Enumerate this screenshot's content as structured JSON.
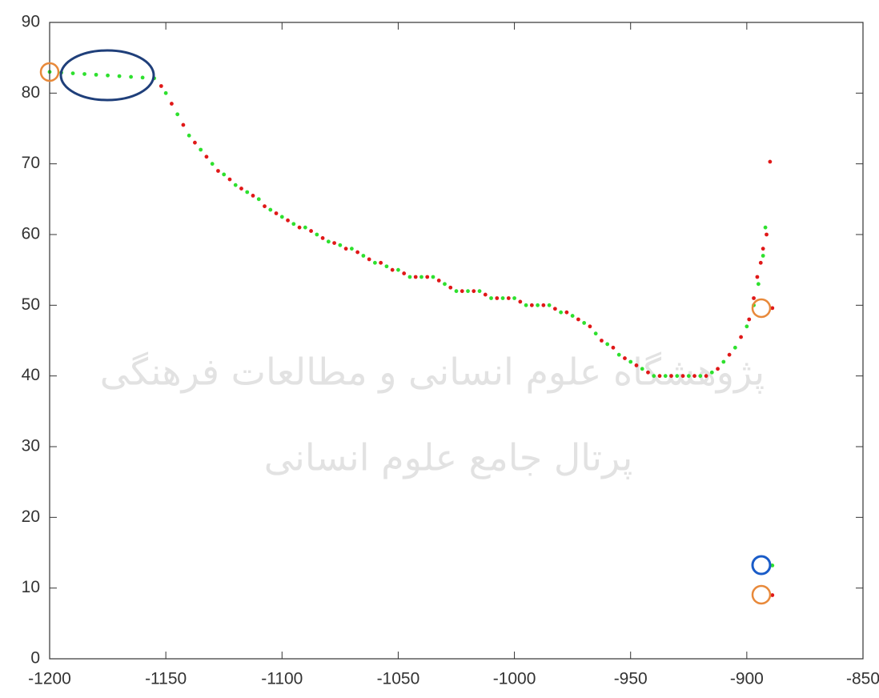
{
  "chart_data": {
    "type": "scatter",
    "annotations": [
      "پژوهشگاه علوم انسانی و مطالعات فرهنگی",
      "پرتال جامع علوم انسانی"
    ],
    "xlim": [
      -1200,
      -850
    ],
    "ylim": [
      0,
      90
    ],
    "xticks": [
      -1200,
      -1150,
      -1100,
      -1050,
      -1000,
      -950,
      -900,
      -850
    ],
    "yticks": [
      0,
      10,
      20,
      30,
      40,
      50,
      60,
      70,
      80,
      90
    ],
    "series": [
      {
        "color": "#2ee02e",
        "x": [
          -1200,
          -1195,
          -1190,
          -1185,
          -1180,
          -1175,
          -1170,
          -1165,
          -1160,
          -1155,
          -1150,
          -1145,
          -1140,
          -1135,
          -1130,
          -1125,
          -1120,
          -1115,
          -1110,
          -1105,
          -1100,
          -1095,
          -1090,
          -1085,
          -1080,
          -1075,
          -1070,
          -1065,
          -1060,
          -1055,
          -1050,
          -1045,
          -1040,
          -1035,
          -1030,
          -1025,
          -1020,
          -1015,
          -1010,
          -1005,
          -1000,
          -995,
          -990,
          -985,
          -980,
          -975,
          -970,
          -965,
          -960,
          -955,
          -950,
          -945,
          -940,
          -935,
          -930,
          -925,
          -920,
          -915,
          -910,
          -905,
          -900,
          -897,
          -895,
          -893,
          -892,
          -889
        ],
        "y": [
          83,
          82.9,
          82.8,
          82.7,
          82.6,
          82.5,
          82.4,
          82.3,
          82.2,
          82.1,
          80,
          77,
          74,
          72,
          70,
          68.5,
          67,
          66,
          65,
          63.5,
          62.5,
          61.5,
          61,
          60,
          59,
          58.5,
          58,
          57,
          56,
          55.5,
          55,
          54,
          54,
          54,
          53,
          52,
          52,
          52,
          51,
          51,
          51,
          50,
          50,
          50,
          49,
          48.5,
          47.5,
          46,
          44.5,
          43,
          42,
          41,
          40,
          40,
          40,
          40,
          40,
          40.5,
          42,
          44,
          47,
          50,
          53,
          57,
          61,
          13.2
        ]
      },
      {
        "color": "#e01818",
        "x": [
          -1152,
          -1147.5,
          -1142.5,
          -1137.5,
          -1132.5,
          -1127.5,
          -1122.5,
          -1117.5,
          -1112.5,
          -1107.5,
          -1102.5,
          -1097.5,
          -1092.5,
          -1087.5,
          -1082.5,
          -1077.5,
          -1072.5,
          -1067.5,
          -1062.5,
          -1057.5,
          -1052.5,
          -1047.5,
          -1042.5,
          -1037.5,
          -1032.5,
          -1027.5,
          -1022.5,
          -1017.5,
          -1012.5,
          -1007.5,
          -1002.5,
          -997.5,
          -992.5,
          -987.5,
          -982.5,
          -977.5,
          -972.5,
          -967.5,
          -962.5,
          -957.5,
          -952.5,
          -947.5,
          -942.5,
          -937.5,
          -932.5,
          -927.5,
          -922.5,
          -917.5,
          -912.5,
          -907.5,
          -902.5,
          -899,
          -897,
          -895.5,
          -894,
          -893,
          -891.5,
          -890,
          -889,
          -889
        ],
        "y": [
          81,
          78.5,
          75.5,
          73,
          71,
          69,
          67.8,
          66.5,
          65.5,
          64,
          63,
          62,
          61,
          60.5,
          59.5,
          58.8,
          58,
          57.5,
          56.5,
          56,
          55,
          54.5,
          54,
          54,
          53.5,
          52.5,
          52,
          52,
          51.5,
          51,
          51,
          50.5,
          50,
          50,
          49.5,
          49,
          48,
          47,
          45,
          44,
          42.5,
          41.5,
          40.5,
          40,
          40,
          40,
          40,
          40,
          41,
          43,
          45.5,
          48,
          51,
          54,
          56,
          58,
          60,
          70.3,
          49.6,
          9
        ]
      }
    ]
  }
}
